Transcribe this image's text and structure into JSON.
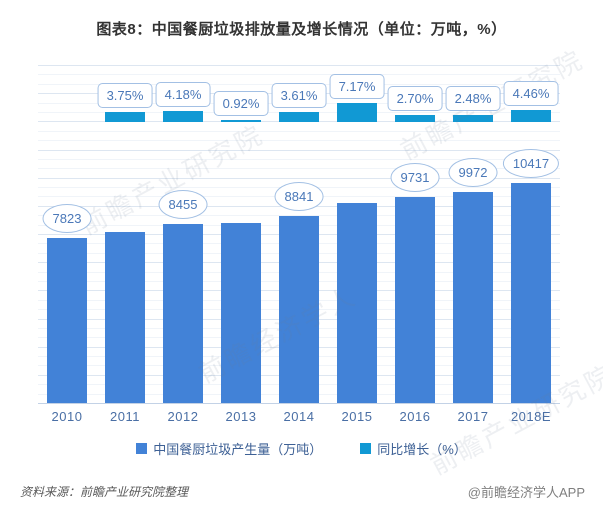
{
  "title": "图表8：中国餐厨垃圾排放量及增长情况（单位：万吨，%）",
  "chart_data": {
    "type": "bar",
    "categories": [
      "2010",
      "2011",
      "2012",
      "2013",
      "2014",
      "2015",
      "2016",
      "2017",
      "2018E"
    ],
    "series": [
      {
        "name": "中国餐厨垃圾产生量（万吨）",
        "axis": "primary",
        "color": "#4282d7",
        "values": [
          7823,
          8116,
          8455,
          8533,
          8841,
          9475,
          9731,
          9972,
          10417
        ],
        "labels": [
          "7823",
          null,
          "8455",
          null,
          "8841",
          null,
          "9731",
          "9972",
          "10417"
        ]
      },
      {
        "name": "同比增长（%）",
        "axis": "secondary",
        "color": "#1199d4",
        "values": [
          null,
          3.75,
          4.18,
          0.92,
          3.61,
          7.17,
          2.7,
          2.48,
          4.46
        ],
        "labels": [
          null,
          "3.75%",
          "4.18%",
          "0.92%",
          "3.61%",
          "7.17%",
          "2.70%",
          "2.48%",
          "4.46%"
        ]
      }
    ],
    "legend": [
      "中国餐厨垃圾产生量（万吨）",
      "同比增长（%）"
    ],
    "legend_position": "bottom",
    "grid": true,
    "primary_axis_max": 16000,
    "xlabel": "",
    "ylabel": ""
  },
  "footer": {
    "source": "资料来源：前瞻产业研究院整理",
    "credit": "@前瞻经济学人APP"
  },
  "watermarks": [
    "前瞻产业研究院",
    "前瞻经济学人"
  ],
  "colors": {
    "production_bar": "#4282d7",
    "growth_bar": "#1199d4",
    "label_text": "#4a78b8",
    "label_border": "#a3c0e4",
    "axis_text": "#4a6fa5"
  }
}
